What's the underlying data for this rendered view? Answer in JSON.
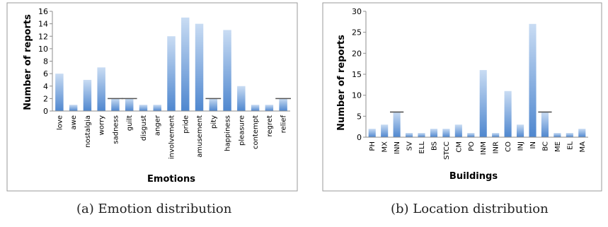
{
  "captions": {
    "left": "(a) Emotion distribution",
    "right": "(b) Location distribution"
  },
  "colors": {
    "bar_top": "#c9dcf3",
    "bar_bottom": "#4f87cf",
    "frame": "#9a9a9a",
    "axis": "#8c8c8c",
    "error_bar": "#555555"
  },
  "chart_data": [
    {
      "type": "bar",
      "title": "",
      "xlabel": "Emotions",
      "ylabel": "Number of reports",
      "ylim": [
        0,
        16
      ],
      "yticks": [
        0,
        2,
        4,
        6,
        8,
        10,
        12,
        14,
        16
      ],
      "grid": false,
      "legend": "none",
      "categories": [
        "love",
        "awe",
        "nostalgia",
        "worry",
        "sadness",
        "guilt",
        "disgust",
        "anger",
        "involvement",
        "pride",
        "amusement",
        "pity",
        "happiness",
        "pleasure",
        "contempt",
        "regret",
        "relief"
      ],
      "values": [
        6,
        1,
        5,
        7,
        2,
        2,
        1,
        1,
        12,
        15,
        14,
        2,
        13,
        4,
        1,
        1,
        2
      ],
      "error_marks": [
        4,
        5,
        11,
        16
      ]
    },
    {
      "type": "bar",
      "title": "",
      "xlabel": "Buildings",
      "ylabel": "Number of reports",
      "ylim": [
        0,
        30
      ],
      "yticks": [
        0,
        5,
        10,
        15,
        20,
        25,
        30
      ],
      "grid": false,
      "legend": "none",
      "categories": [
        "PH",
        "MX",
        "INN",
        "SV",
        "ELL",
        "BS",
        "STCC",
        "CM",
        "PO",
        "INM",
        "INR",
        "CO",
        "INJ",
        "IN",
        "BC",
        "ME",
        "EL",
        "MA"
      ],
      "values": [
        2,
        3,
        6,
        1,
        1,
        2,
        2,
        3,
        1,
        16,
        1,
        11,
        3,
        27,
        6,
        1,
        1,
        2
      ],
      "error_marks": [
        2,
        14
      ]
    }
  ]
}
